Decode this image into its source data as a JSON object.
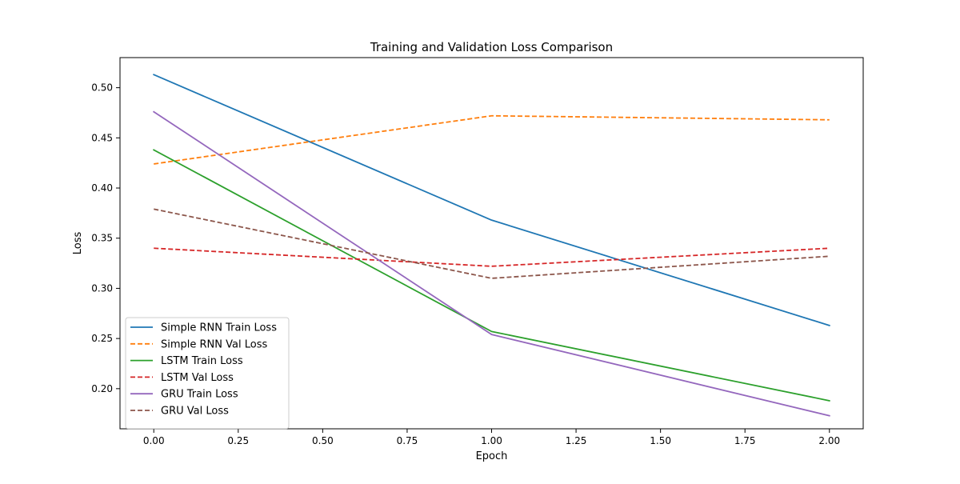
{
  "chart_data": {
    "type": "line",
    "title": "Training and Validation Loss Comparison",
    "xlabel": "Epoch",
    "ylabel": "Loss",
    "xlim": [
      -0.1,
      2.1
    ],
    "ylim": [
      0.16,
      0.53
    ],
    "x_ticks": [
      0.0,
      0.25,
      0.5,
      0.75,
      1.0,
      1.25,
      1.5,
      1.75,
      2.0
    ],
    "x_tick_labels": [
      "0.00",
      "0.25",
      "0.50",
      "0.75",
      "1.00",
      "1.25",
      "1.50",
      "1.75",
      "2.00"
    ],
    "y_ticks": [
      0.2,
      0.25,
      0.3,
      0.35,
      0.4,
      0.45,
      0.5
    ],
    "y_tick_labels": [
      "0.20",
      "0.25",
      "0.30",
      "0.35",
      "0.40",
      "0.45",
      "0.50"
    ],
    "grid": false,
    "legend_position": "bottom-left",
    "x": [
      0,
      1,
      2
    ],
    "series": [
      {
        "name": "Simple RNN Train Loss",
        "values": [
          0.513,
          0.368,
          0.263
        ],
        "color": "#1f77b4",
        "dashed": false
      },
      {
        "name": "Simple RNN Val Loss",
        "values": [
          0.424,
          0.472,
          0.468
        ],
        "color": "#ff7f0e",
        "dashed": true
      },
      {
        "name": "LSTM Train Loss",
        "values": [
          0.438,
          0.257,
          0.188
        ],
        "color": "#2ca02c",
        "dashed": false
      },
      {
        "name": "LSTM Val Loss",
        "values": [
          0.34,
          0.322,
          0.34
        ],
        "color": "#d62728",
        "dashed": true
      },
      {
        "name": "GRU Train Loss",
        "values": [
          0.476,
          0.254,
          0.173
        ],
        "color": "#9467bd",
        "dashed": false
      },
      {
        "name": "GRU Val Loss",
        "values": [
          0.379,
          0.31,
          0.332
        ],
        "color": "#8c564b",
        "dashed": true
      }
    ]
  }
}
